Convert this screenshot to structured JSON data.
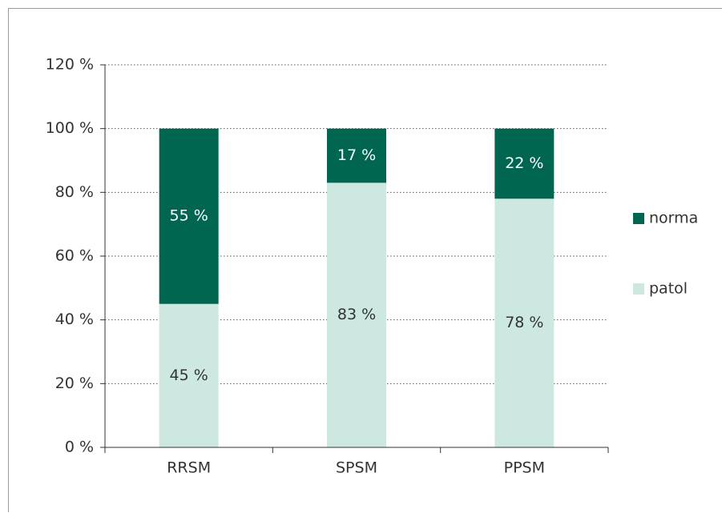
{
  "chart_data": {
    "type": "stacked_bar",
    "categories": [
      "RRSM",
      "SPSM",
      "PPSM"
    ],
    "series": [
      {
        "name": "patol",
        "color": "#cde8e1",
        "values": [
          45,
          83,
          78
        ],
        "value_labels": [
          "45 %",
          "83 %",
          "78 %"
        ]
      },
      {
        "name": "norma",
        "color": "#00664f",
        "values": [
          55,
          17,
          22
        ],
        "value_labels": [
          "55 %",
          "17 %",
          "22 %"
        ]
      }
    ],
    "ylim": [
      0,
      120
    ],
    "yticks": [
      {
        "value": 0,
        "label": "0 %"
      },
      {
        "value": 20,
        "label": "20 %"
      },
      {
        "value": 40,
        "label": "40 %"
      },
      {
        "value": 60,
        "label": "60 %"
      },
      {
        "value": 80,
        "label": "80 %"
      },
      {
        "value": 100,
        "label": "100 %"
      },
      {
        "value": 120,
        "label": "120 %"
      }
    ],
    "grid": true,
    "legend": "right"
  }
}
